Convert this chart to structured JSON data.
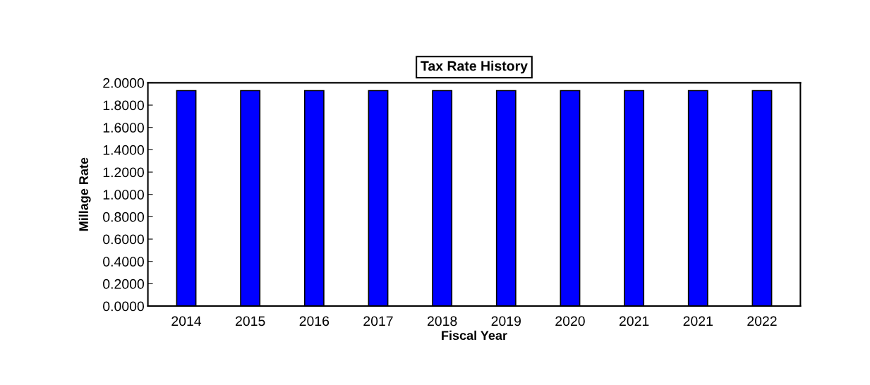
{
  "chart_data": {
    "type": "bar",
    "title": "Tax Rate History",
    "xlabel": "Fiscal Year",
    "ylabel": "Millage Rate",
    "categories": [
      "2014",
      "2015",
      "2016",
      "2017",
      "2018",
      "2019",
      "2020",
      "2021",
      "2021",
      "2022"
    ],
    "values": [
      1.93,
      1.93,
      1.93,
      1.93,
      1.93,
      1.93,
      1.93,
      1.93,
      1.93,
      1.93
    ],
    "color": "#0000ff",
    "ylim": [
      0,
      2
    ],
    "yticks": [
      {
        "value": 0,
        "label": "0.0000"
      },
      {
        "value": 0.2,
        "label": "0.2000"
      },
      {
        "value": 0.4,
        "label": "0.4000"
      },
      {
        "value": 0.6,
        "label": "0.6000"
      },
      {
        "value": 0.8,
        "label": "0.8000"
      },
      {
        "value": 1.0,
        "label": "1.0000"
      },
      {
        "value": 1.2,
        "label": "1.2000"
      },
      {
        "value": 1.4,
        "label": "1.4000"
      },
      {
        "value": 1.6,
        "label": "1.6000"
      },
      {
        "value": 1.8,
        "label": "1.8000"
      },
      {
        "value": 2.0,
        "label": "2.0000"
      }
    ],
    "grid": false
  }
}
